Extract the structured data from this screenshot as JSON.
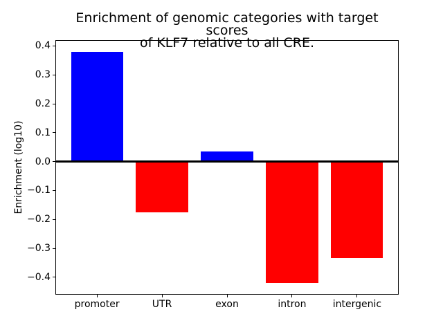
{
  "chart_data": {
    "type": "bar",
    "title_line1": "Enrichment of genomic categories with target scores",
    "title_line2": "of KLF7 relative to all CRE.",
    "title": "Enrichment of genomic categories with target scores\nof KLF7 relative to all CRE.",
    "ylabel": "Enrichment (log10)",
    "xlabel": "",
    "categories": [
      "promoter",
      "UTR",
      "exon",
      "intron",
      "intergenic"
    ],
    "values": [
      0.38,
      -0.175,
      0.035,
      -0.42,
      -0.333
    ],
    "bar_colors": [
      "#0000ff",
      "#ff0000",
      "#0000ff",
      "#ff0000",
      "#ff0000"
    ],
    "positive_color": "#0000ff",
    "negative_color": "#ff0000",
    "ylim": [
      -0.46,
      0.42
    ],
    "ytick_values": [
      0.4,
      0.3,
      0.2,
      0.1,
      0.0,
      -0.1,
      -0.2,
      -0.3,
      -0.4
    ],
    "ytick_labels": [
      "0.4",
      "0.3",
      "0.2",
      "0.1",
      "0.0",
      "−0.1",
      "−0.2",
      "−0.3",
      "−0.4"
    ],
    "bar_width": 0.8,
    "grid": false,
    "legend": null,
    "background_color": "#ffffff",
    "axis_color": "#000000",
    "zero_line": {
      "y": 0.0,
      "color": "#000000",
      "linewidth": 2.5
    }
  }
}
